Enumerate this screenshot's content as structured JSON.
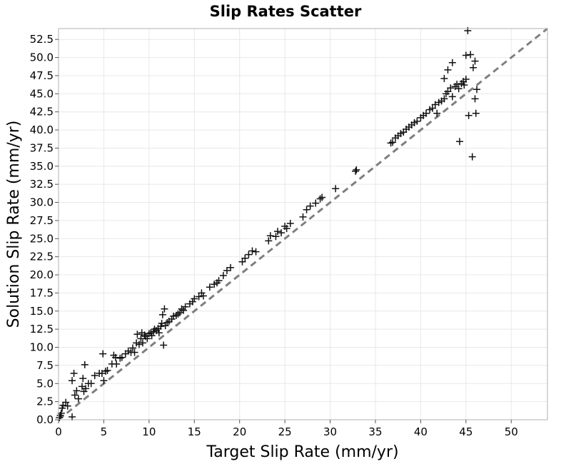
{
  "chart_data": {
    "type": "scatter",
    "title": "Slip Rates Scatter",
    "xlabel": "Target Slip Rate (mm/yr)",
    "ylabel": "Solution Slip Rate (mm/yr)",
    "xlim": [
      0,
      54
    ],
    "ylim": [
      0,
      54
    ],
    "x_ticks": [
      0,
      5,
      10,
      15,
      20,
      25,
      30,
      35,
      40,
      45,
      50
    ],
    "x_tick_labels": [
      "0",
      "5",
      "10",
      "15",
      "20",
      "25",
      "30",
      "35",
      "40",
      "45",
      "50"
    ],
    "y_ticks": [
      0,
      2.5,
      5,
      7.5,
      10,
      12.5,
      15,
      17.5,
      20,
      22.5,
      25,
      27.5,
      30,
      32.5,
      35,
      37.5,
      40,
      42.5,
      45,
      47.5,
      50,
      52.5
    ],
    "y_tick_labels": [
      "0.0",
      "2.5",
      "5.0",
      "7.5",
      "10.0",
      "12.5",
      "15.0",
      "17.5",
      "20.0",
      "22.5",
      "25.0",
      "27.5",
      "30.0",
      "32.5",
      "35.0",
      "37.5",
      "40.0",
      "42.5",
      "45.0",
      "47.5",
      "50.0",
      "52.5"
    ],
    "grid": true,
    "marker": "plus",
    "reference_line": {
      "style": "dashed",
      "color": "#7f7f7f",
      "from": [
        0,
        0
      ],
      "to": [
        54,
        54
      ]
    },
    "points": [
      [
        0.1,
        0.3
      ],
      [
        0.2,
        0.6
      ],
      [
        0.3,
        0.9
      ],
      [
        0.4,
        1.6
      ],
      [
        0.5,
        2.0
      ],
      [
        0.8,
        2.4
      ],
      [
        1.0,
        1.9
      ],
      [
        1.5,
        0.4
      ],
      [
        1.5,
        5.4
      ],
      [
        1.7,
        6.4
      ],
      [
        1.8,
        3.4
      ],
      [
        2.0,
        4.0
      ],
      [
        2.2,
        2.9
      ],
      [
        2.6,
        4.6
      ],
      [
        2.7,
        5.7
      ],
      [
        2.8,
        3.9
      ],
      [
        2.9,
        7.6
      ],
      [
        3.0,
        4.3
      ],
      [
        3.3,
        5.0
      ],
      [
        3.6,
        5.0
      ],
      [
        4.0,
        6.1
      ],
      [
        4.5,
        6.4
      ],
      [
        4.8,
        6.4
      ],
      [
        4.9,
        9.1
      ],
      [
        5.0,
        5.4
      ],
      [
        5.2,
        6.7
      ],
      [
        5.4,
        6.8
      ],
      [
        5.9,
        7.7
      ],
      [
        6.1,
        8.9
      ],
      [
        6.3,
        8.6
      ],
      [
        6.4,
        7.7
      ],
      [
        6.8,
        8.5
      ],
      [
        7.0,
        8.6
      ],
      [
        7.4,
        9.1
      ],
      [
        7.7,
        9.5
      ],
      [
        8.0,
        9.3
      ],
      [
        8.2,
        9.9
      ],
      [
        8.4,
        9.3
      ],
      [
        8.6,
        10.6
      ],
      [
        8.7,
        11.8
      ],
      [
        8.9,
        10.4
      ],
      [
        9.1,
        11.2
      ],
      [
        9.2,
        12.0
      ],
      [
        9.3,
        10.6
      ],
      [
        9.5,
        11.7
      ],
      [
        9.6,
        11.5
      ],
      [
        9.8,
        11.2
      ],
      [
        10.0,
        11.9
      ],
      [
        10.2,
        12.0
      ],
      [
        10.3,
        11.6
      ],
      [
        10.5,
        12.2
      ],
      [
        10.6,
        12.5
      ],
      [
        10.8,
        12.3
      ],
      [
        11.0,
        12.6
      ],
      [
        11.1,
        12.0
      ],
      [
        11.3,
        12.9
      ],
      [
        11.4,
        13.3
      ],
      [
        11.5,
        14.5
      ],
      [
        11.6,
        10.3
      ],
      [
        11.7,
        15.3
      ],
      [
        11.8,
        13.0
      ],
      [
        12.0,
        13.4
      ],
      [
        12.2,
        13.6
      ],
      [
        12.5,
        13.9
      ],
      [
        12.7,
        14.3
      ],
      [
        13.0,
        14.4
      ],
      [
        13.2,
        14.6
      ],
      [
        13.4,
        14.8
      ],
      [
        13.6,
        15.3
      ],
      [
        13.8,
        15.1
      ],
      [
        14.0,
        15.6
      ],
      [
        14.5,
        16.0
      ],
      [
        14.8,
        16.3
      ],
      [
        15.0,
        16.7
      ],
      [
        15.5,
        17.0
      ],
      [
        15.8,
        17.5
      ],
      [
        16.0,
        17.1
      ],
      [
        16.7,
        18.3
      ],
      [
        17.2,
        18.7
      ],
      [
        17.5,
        18.9
      ],
      [
        17.7,
        19.2
      ],
      [
        18.2,
        19.9
      ],
      [
        18.6,
        20.6
      ],
      [
        19.0,
        21.0
      ],
      [
        20.3,
        21.8
      ],
      [
        20.6,
        22.3
      ],
      [
        21.0,
        22.8
      ],
      [
        21.4,
        23.3
      ],
      [
        21.8,
        23.2
      ],
      [
        23.2,
        24.7
      ],
      [
        23.4,
        25.4
      ],
      [
        24.0,
        25.3
      ],
      [
        24.2,
        26.0
      ],
      [
        24.6,
        25.8
      ],
      [
        25.0,
        26.7
      ],
      [
        25.2,
        26.4
      ],
      [
        25.6,
        27.1
      ],
      [
        27.0,
        28.0
      ],
      [
        27.4,
        29.0
      ],
      [
        27.8,
        29.5
      ],
      [
        28.4,
        29.9
      ],
      [
        28.9,
        30.5
      ],
      [
        29.1,
        30.7
      ],
      [
        30.6,
        31.9
      ],
      [
        32.8,
        34.3
      ],
      [
        32.9,
        34.5
      ],
      [
        36.7,
        38.2
      ],
      [
        36.9,
        38.3
      ],
      [
        37.2,
        38.9
      ],
      [
        37.5,
        39.2
      ],
      [
        37.8,
        39.5
      ],
      [
        38.1,
        39.7
      ],
      [
        38.4,
        40.1
      ],
      [
        38.7,
        40.4
      ],
      [
        39.0,
        40.7
      ],
      [
        39.3,
        41.0
      ],
      [
        39.6,
        41.2
      ],
      [
        40.0,
        41.7
      ],
      [
        40.3,
        42.0
      ],
      [
        40.6,
        42.3
      ],
      [
        41.0,
        42.8
      ],
      [
        41.3,
        43.0
      ],
      [
        41.6,
        43.5
      ],
      [
        42.0,
        43.8
      ],
      [
        42.3,
        44.0
      ],
      [
        42.6,
        44.3
      ],
      [
        42.8,
        45.0
      ],
      [
        43.0,
        45.3
      ],
      [
        43.3,
        45.8
      ],
      [
        43.5,
        44.6
      ],
      [
        43.8,
        46.0
      ],
      [
        44.0,
        46.3
      ],
      [
        44.2,
        45.7
      ],
      [
        44.5,
        46.4
      ],
      [
        44.8,
        46.2
      ],
      [
        45.0,
        47.0
      ],
      [
        42.6,
        47.1
      ],
      [
        43.0,
        48.3
      ],
      [
        43.5,
        49.3
      ],
      [
        44.3,
        38.4
      ],
      [
        45.0,
        50.3
      ],
      [
        45.2,
        53.7
      ],
      [
        45.5,
        50.4
      ],
      [
        45.8,
        48.6
      ],
      [
        46.0,
        49.5
      ],
      [
        46.1,
        42.3
      ],
      [
        45.7,
        36.3
      ],
      [
        45.3,
        42.0
      ],
      [
        46.2,
        45.6
      ],
      [
        46.0,
        44.3
      ],
      [
        44.7,
        46.7
      ],
      [
        41.8,
        42.3
      ]
    ]
  }
}
